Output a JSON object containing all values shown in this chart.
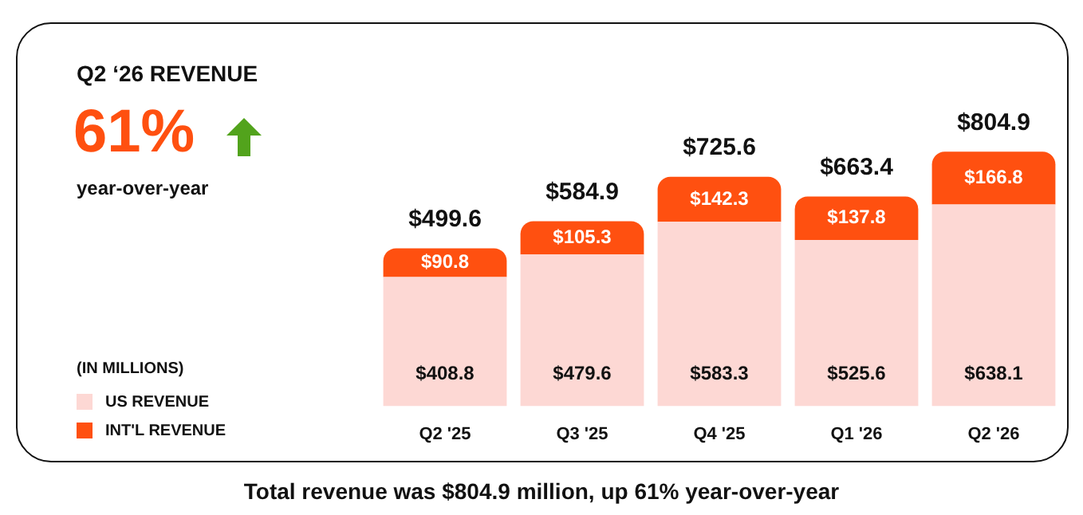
{
  "chart_data": {
    "type": "bar",
    "title": "Q2 ‘26 REVENUE",
    "subtitle": "61%",
    "legend_title": "(IN MILLIONS)",
    "stacked": true,
    "legend": "left",
    "categories": [
      "Q2 '25",
      "Q3 '25",
      "Q4 '25",
      "Q1 '26",
      "Q2 '26"
    ],
    "series": [
      {
        "name": "US REVENUE",
        "color": "#fdd8d4",
        "values": [
          408.8,
          479.6,
          583.3,
          525.6,
          638.1
        ],
        "value_labels": [
          "$408.8",
          "$479.6",
          "$583.3",
          "$525.6",
          "$638.1"
        ]
      },
      {
        "name": "INT'L REVENUE",
        "color": "#ff5010",
        "values": [
          90.8,
          105.3,
          142.3,
          137.8,
          166.8
        ],
        "value_labels": [
          "$90.8",
          "$105.3",
          "$142.3",
          "$137.8",
          "$166.8"
        ]
      }
    ],
    "totals": [
      "$499.6",
      "$584.9",
      "$725.6",
      "$663.4",
      "$804.9"
    ],
    "annotations": [
      "year-over-year",
      "Total revenue was $804.9 million, up 61% year-over-year"
    ]
  }
}
